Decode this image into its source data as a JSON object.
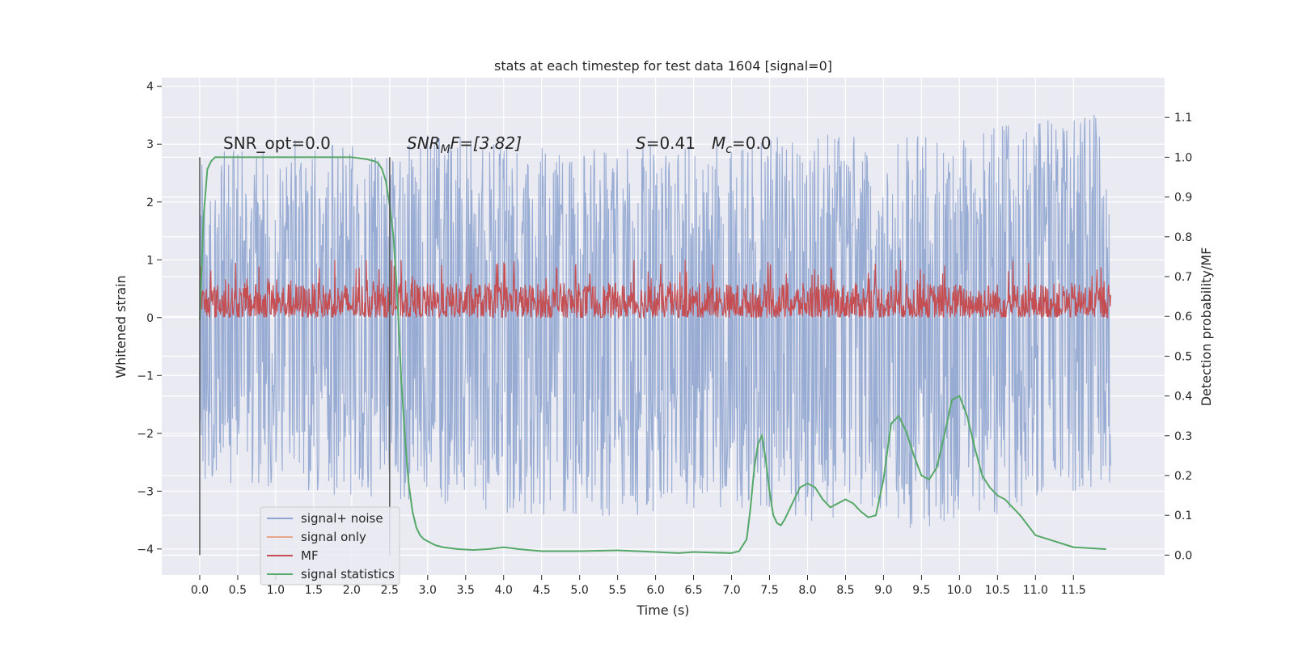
{
  "chart_data": {
    "type": "line",
    "title": "stats at each timestep for test data 1604 [signal=0]",
    "xlabel": "Time (s)",
    "ylabel": "Whitened strain",
    "ylabel_right": "Detection probability/MF",
    "xlim": [
      -0.5,
      12.7
    ],
    "ylim": [
      -4.45,
      4.15
    ],
    "ylim_right": [
      -0.05,
      1.2
    ],
    "x_ticks": [
      "0.0",
      "0.5",
      "1.0",
      "1.5",
      "2.0",
      "2.5",
      "3.0",
      "3.5",
      "4.0",
      "4.5",
      "5.0",
      "5.5",
      "6.0",
      "6.5",
      "7.0",
      "7.5",
      "8.0",
      "8.5",
      "9.0",
      "9.5",
      "10.0",
      "10.5",
      "11.0",
      "11.5"
    ],
    "y_ticks": [
      "4",
      "3",
      "2",
      "1",
      "0",
      "−1",
      "−2",
      "−3",
      "−4"
    ],
    "y_right_ticks": [
      "1.1",
      "1.0",
      "0.9",
      "0.8",
      "0.7",
      "0.6",
      "0.5",
      "0.4",
      "0.3",
      "0.2",
      "0.1",
      "0.0"
    ],
    "grid": true,
    "annotations": {
      "snr_opt": "SNR_opt=0.0",
      "snr_mf_sym": "SNR",
      "snr_mf_sub": "M",
      "snr_mf_rest": "F=[3.82]",
      "s_label": "S",
      "s_value": "=0.41",
      "mc_sym": "M",
      "mc_sub": "c",
      "mc_value": "=0.0"
    },
    "vertical_lines_x": [
      0.0,
      2.5
    ],
    "legend": {
      "placement": "bottom-left",
      "entries": [
        {
          "label": "signal+ noise",
          "color": "#8fa5cf"
        },
        {
          "label": "signal only",
          "color": "#e8a58a"
        },
        {
          "label": "MF",
          "color": "#c44e52"
        },
        {
          "label": "signal statistics",
          "color": "#55a868"
        }
      ]
    },
    "series": [
      {
        "name": "signal+ noise",
        "axis": "left",
        "color": "#8fa5cf",
        "x_range": [
          0.0,
          11.99
        ],
        "envelope_x": [
          0.0,
          1.0,
          2.0,
          3.0,
          4.0,
          5.0,
          6.0,
          7.0,
          8.0,
          9.0,
          10.0,
          11.0,
          11.99
        ],
        "envelope_high": [
          2.8,
          3.1,
          3.0,
          3.2,
          3.0,
          2.9,
          3.0,
          3.0,
          3.2,
          3.1,
          3.3,
          3.4,
          3.6
        ],
        "envelope_low": [
          -2.8,
          -3.0,
          -3.1,
          -3.2,
          -3.4,
          -3.5,
          -3.4,
          -3.3,
          -3.6,
          -3.8,
          -3.5,
          -3.3,
          -3.0
        ]
      },
      {
        "name": "MF",
        "axis": "left",
        "color": "#c44e52",
        "x_range": [
          0.0,
          11.99
        ],
        "baseline": 0.0,
        "typical_peak": 0.6,
        "max_peak": 1.0
      },
      {
        "name": "signal statistics",
        "axis": "right",
        "color": "#55a868",
        "x": [
          0.0,
          0.05,
          0.1,
          0.15,
          0.2,
          0.3,
          0.5,
          1.0,
          1.5,
          2.0,
          2.2,
          2.3,
          2.35,
          2.4,
          2.45,
          2.5,
          2.55,
          2.6,
          2.65,
          2.7,
          2.75,
          2.8,
          2.85,
          2.9,
          2.95,
          3.0,
          3.1,
          3.2,
          3.4,
          3.6,
          3.8,
          4.0,
          4.2,
          4.5,
          5.0,
          5.5,
          6.0,
          6.3,
          6.5,
          7.0,
          7.1,
          7.2,
          7.25,
          7.3,
          7.35,
          7.4,
          7.45,
          7.5,
          7.55,
          7.6,
          7.65,
          7.7,
          7.8,
          7.9,
          8.0,
          8.1,
          8.2,
          8.3,
          8.4,
          8.5,
          8.6,
          8.7,
          8.8,
          8.9,
          9.0,
          9.1,
          9.2,
          9.3,
          9.4,
          9.5,
          9.6,
          9.7,
          9.8,
          9.9,
          10.0,
          10.1,
          10.2,
          10.3,
          10.4,
          10.5,
          10.6,
          10.8,
          11.0,
          11.5,
          11.93
        ],
        "y": [
          0.59,
          0.85,
          0.97,
          0.99,
          1.0,
          1.0,
          1.0,
          1.0,
          1.0,
          1.0,
          0.995,
          0.99,
          0.985,
          0.97,
          0.94,
          0.88,
          0.8,
          0.65,
          0.45,
          0.3,
          0.18,
          0.11,
          0.07,
          0.05,
          0.04,
          0.035,
          0.025,
          0.02,
          0.015,
          0.013,
          0.015,
          0.02,
          0.015,
          0.01,
          0.01,
          0.012,
          0.008,
          0.005,
          0.008,
          0.005,
          0.01,
          0.04,
          0.12,
          0.22,
          0.28,
          0.3,
          0.24,
          0.16,
          0.1,
          0.08,
          0.075,
          0.09,
          0.13,
          0.17,
          0.18,
          0.17,
          0.14,
          0.12,
          0.13,
          0.14,
          0.13,
          0.11,
          0.095,
          0.1,
          0.19,
          0.33,
          0.35,
          0.31,
          0.25,
          0.2,
          0.19,
          0.22,
          0.3,
          0.39,
          0.4,
          0.35,
          0.27,
          0.2,
          0.17,
          0.15,
          0.14,
          0.1,
          0.05,
          0.02,
          0.015
        ]
      }
    ]
  }
}
